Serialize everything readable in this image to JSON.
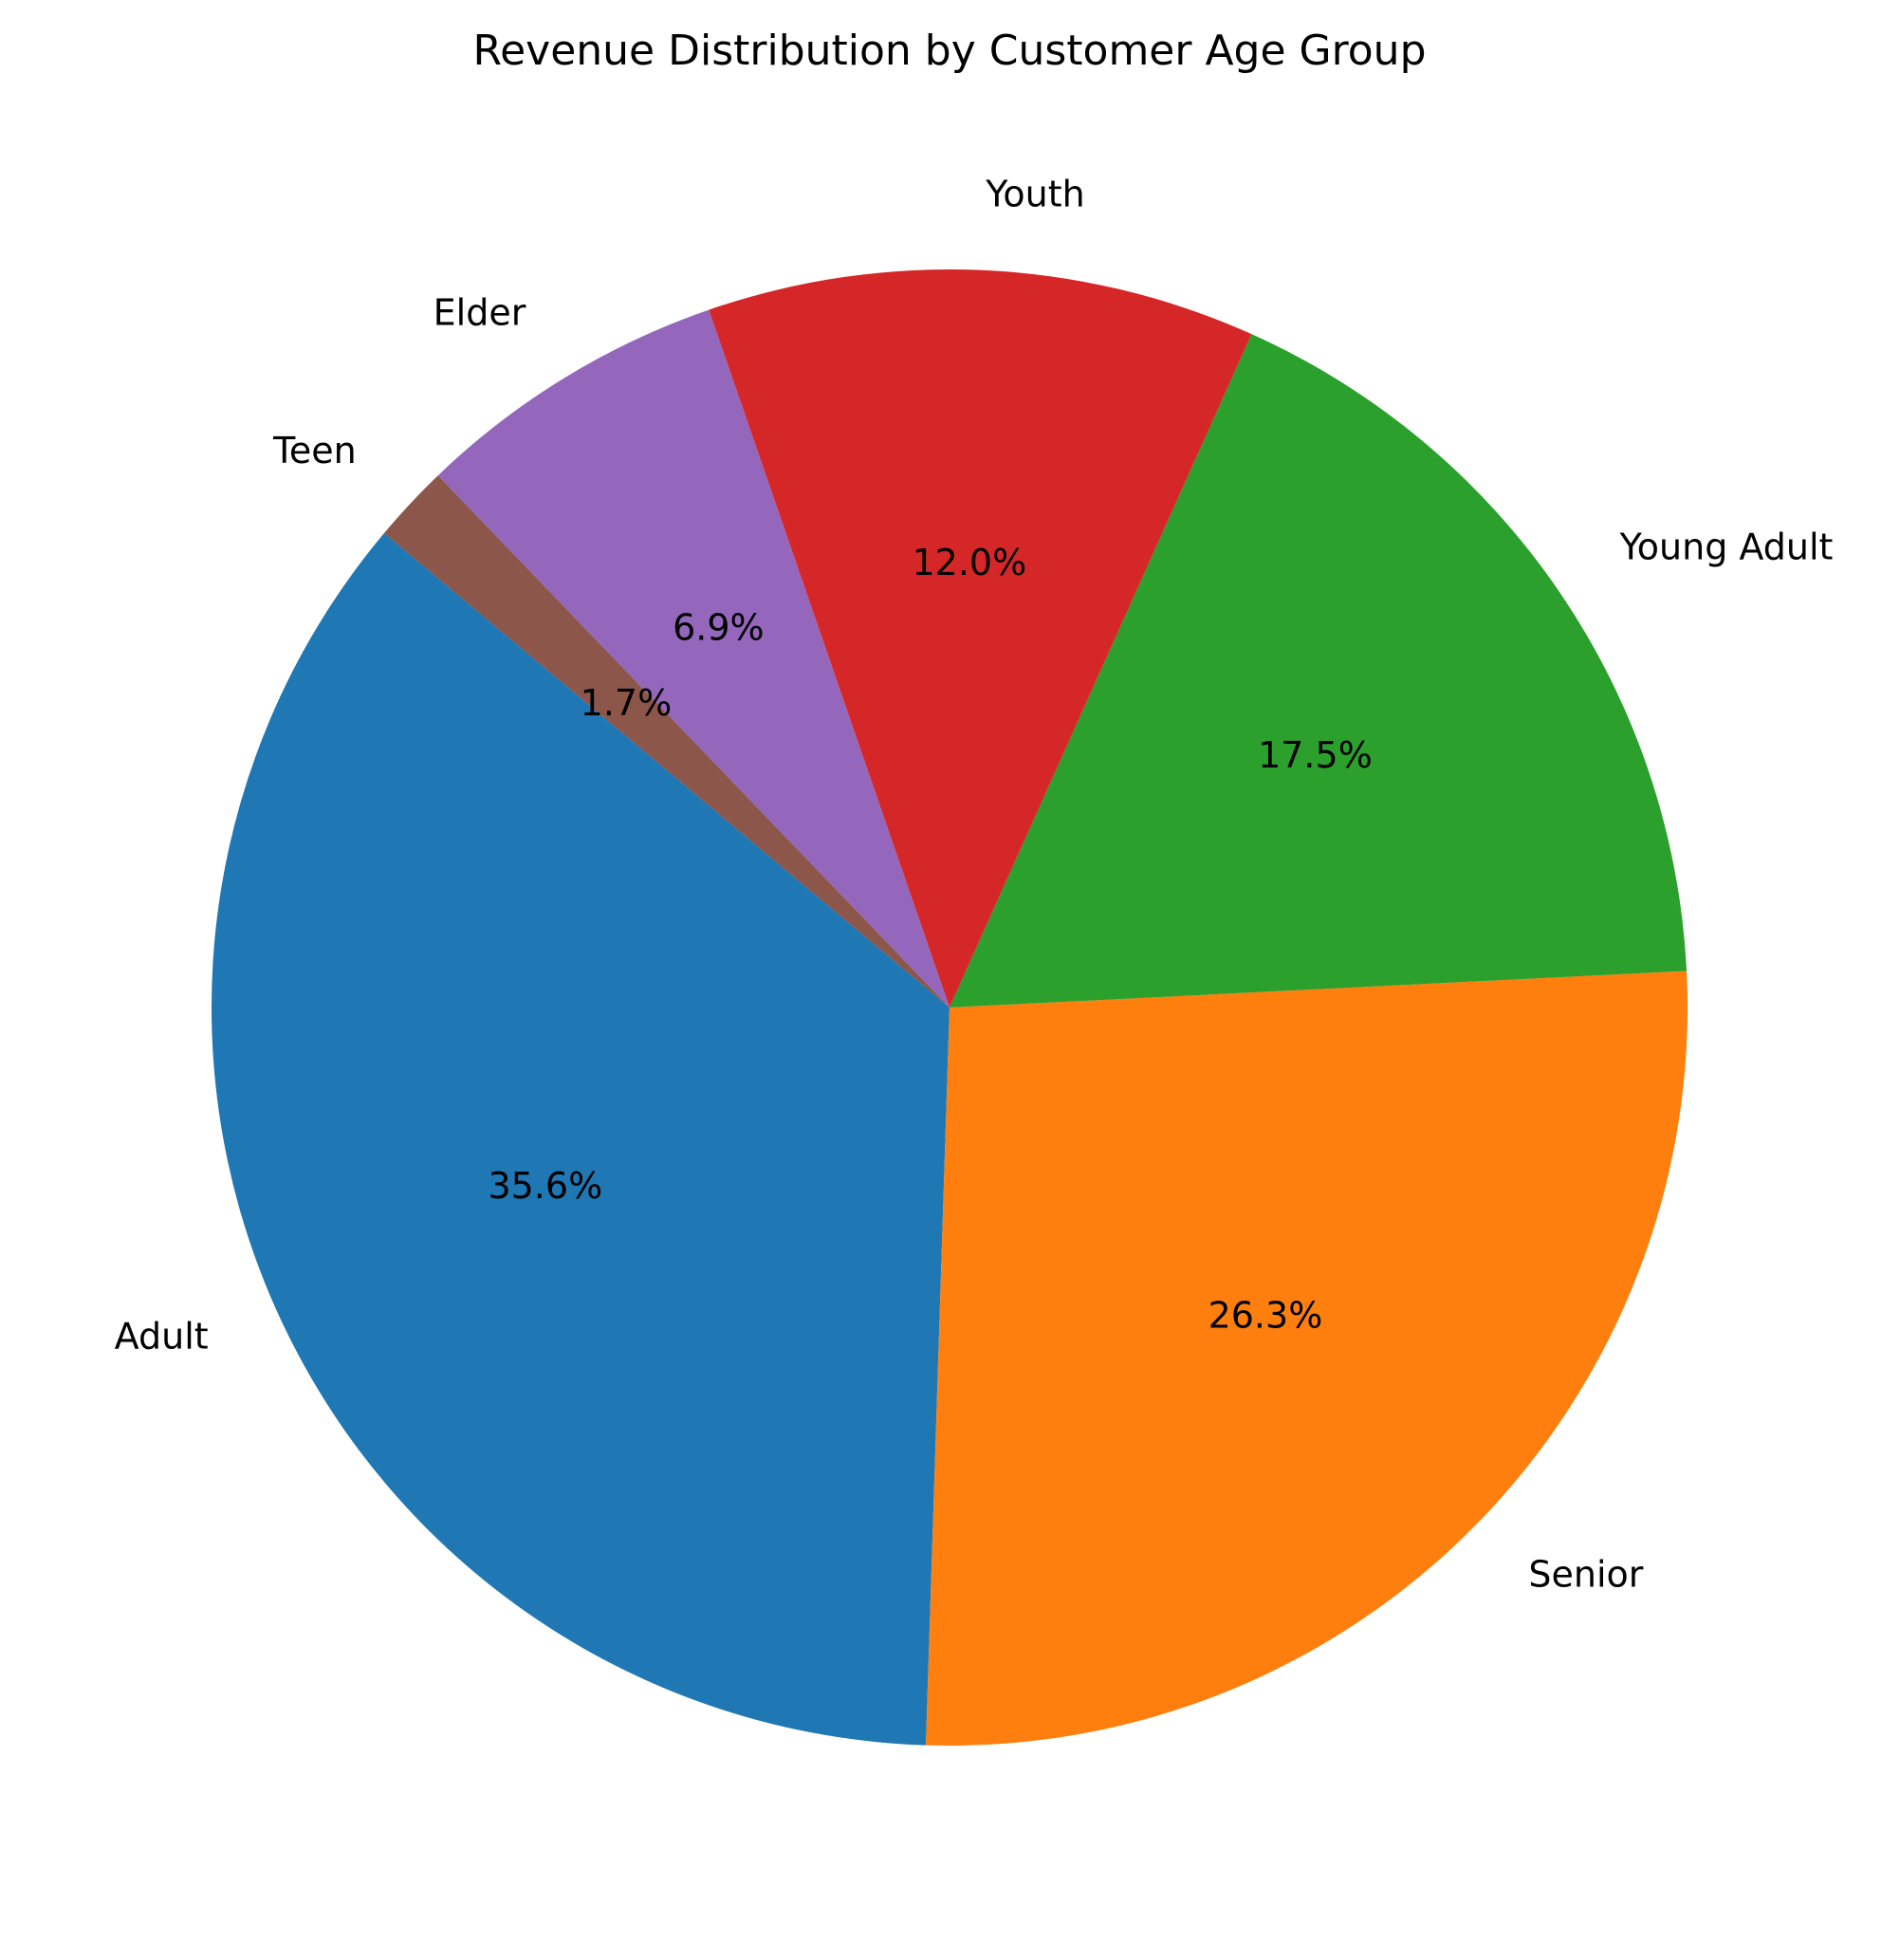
{
  "chart_data": {
    "type": "pie",
    "title": "Revenue Distribution by Customer Age Group",
    "start_angle_deg": 140,
    "direction": "counterclockwise",
    "slices": [
      {
        "label": "Adult",
        "value": 35.6,
        "pct_label": "35.6%",
        "color": "#1f77b4"
      },
      {
        "label": "Senior",
        "value": 26.3,
        "pct_label": "26.3%",
        "color": "#ff7f0e"
      },
      {
        "label": "Young Adult",
        "value": 17.5,
        "pct_label": "17.5%",
        "color": "#2ca02c"
      },
      {
        "label": "Youth",
        "value": 12.0,
        "pct_label": "12.0%",
        "color": "#d62728"
      },
      {
        "label": "Elder",
        "value": 6.9,
        "pct_label": "6.9%",
        "color": "#9467bd"
      },
      {
        "label": "Teen",
        "value": 1.7,
        "pct_label": "1.7%",
        "color": "#8c564b"
      }
    ]
  }
}
